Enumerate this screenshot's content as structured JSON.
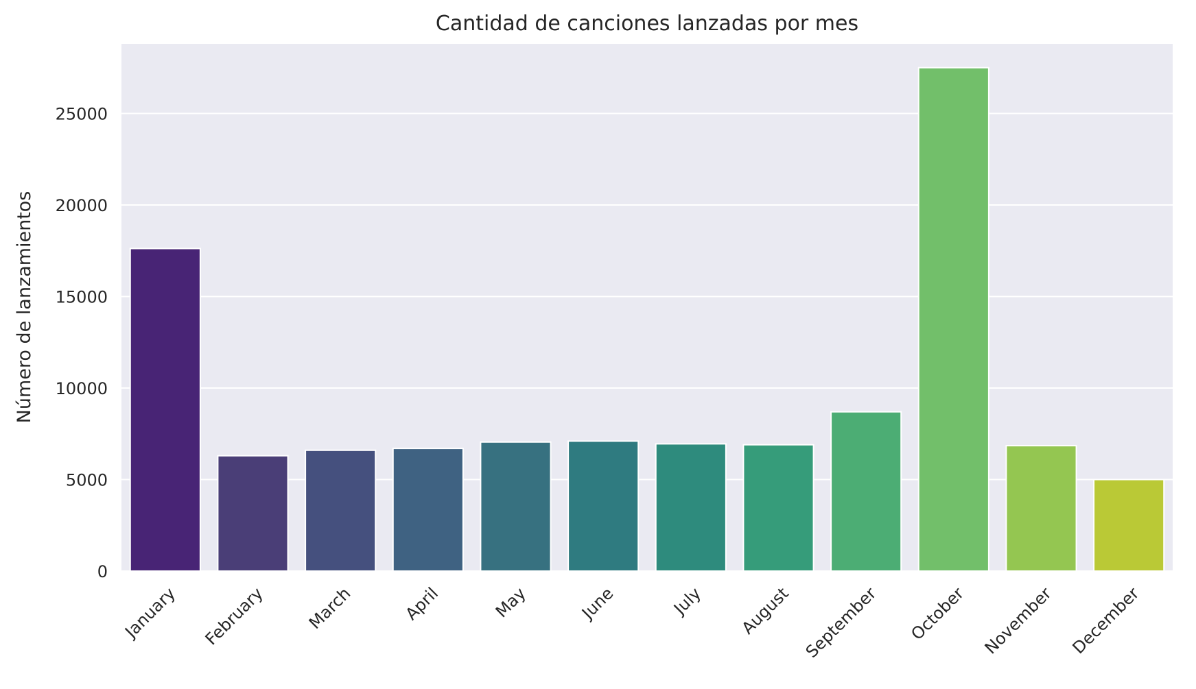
{
  "chart_data": {
    "type": "bar",
    "title": "Cantidad de canciones lanzadas por mes",
    "xlabel": "",
    "ylabel": "Número de lanzamientos",
    "categories": [
      "January",
      "February",
      "March",
      "April",
      "May",
      "June",
      "July",
      "August",
      "September",
      "October",
      "November",
      "December"
    ],
    "values": [
      17620,
      6300,
      6600,
      6700,
      7050,
      7100,
      6950,
      6900,
      8700,
      27500,
      6850,
      5000
    ],
    "ylim": [
      0,
      28800
    ],
    "yticks": [
      0,
      5000,
      10000,
      15000,
      20000,
      25000
    ],
    "grid": true,
    "x_tick_rotation_deg": -45,
    "colors": {
      "plot_background": "#EAEAF2",
      "grid": "#FFFFFF",
      "bar_edge": "#FFFFFF",
      "bars": [
        "#482475",
        "#4A3E77",
        "#45507E",
        "#3F6282",
        "#377180",
        "#2F7B80",
        "#2E8B7D",
        "#369C7A",
        "#4CAD74",
        "#72BF6A",
        "#94C651",
        "#BAC936"
      ]
    }
  }
}
